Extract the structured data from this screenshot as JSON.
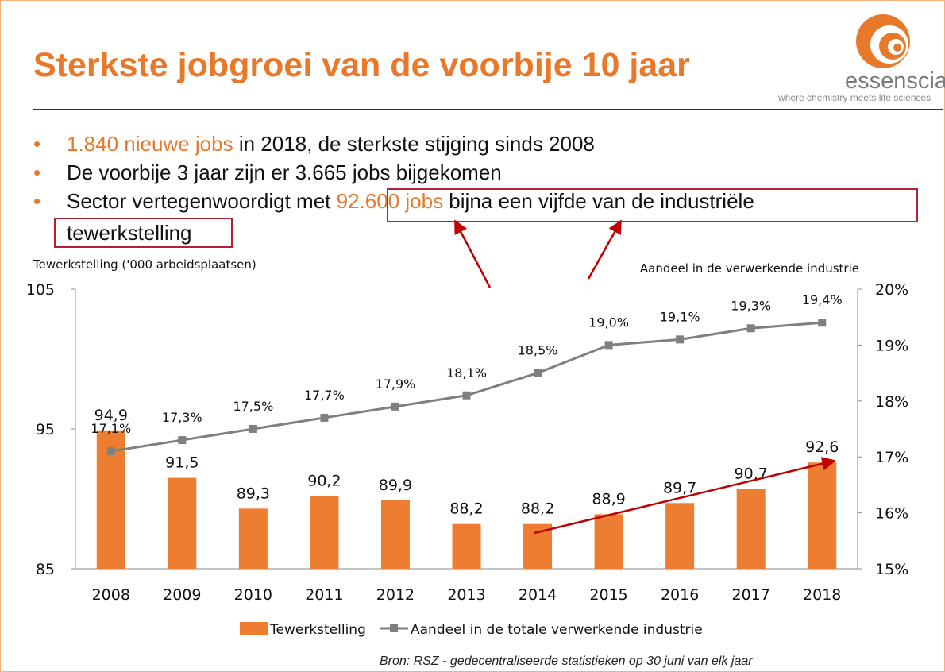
{
  "page": {
    "title": "Sterkste jobgroei van de voorbije 10 jaar",
    "logo_name": "essenscia",
    "tagline": "where chemistry meets life sciences",
    "source": "Bron: RSZ - gedecentraliseerde statistieken op 30 juni van elk jaar",
    "colors": {
      "accent": "#e8792b",
      "bar": "#ed7d31",
      "line": "#7f7f7f",
      "highlight_box": "#b22234"
    }
  },
  "bullets": [
    {
      "highlight": "1.840 nieuwe jobs",
      "text": " in 2018, de sterkste stijging sinds 2008"
    },
    {
      "text": "De voorbije 3 jaar zijn er 3.665 jobs bijgekomen"
    },
    {
      "pre": "Sector vertegenwoordigt met ",
      "highlight": "92.600 jobs",
      "post": " bijna een vijfde van de industriële",
      "cont": "tewerkstelling"
    }
  ],
  "chart_data": {
    "type": "bar",
    "categories": [
      "2008",
      "2009",
      "2010",
      "2011",
      "2012",
      "2013",
      "2014",
      "2015",
      "2016",
      "2017",
      "2018"
    ],
    "series": [
      {
        "name": "Tewerkstelling",
        "type": "bar",
        "axis": "left",
        "values": [
          94.9,
          91.5,
          89.3,
          90.2,
          89.9,
          88.2,
          88.2,
          88.9,
          89.7,
          90.7,
          92.6
        ],
        "labels": [
          "94,9",
          "91,5",
          "89,3",
          "90,2",
          "89,9",
          "88,2",
          "88,2",
          "88,9",
          "89,7",
          "90,7",
          "92,6"
        ]
      },
      {
        "name": "Aandeel in de totale verwerkende industrie",
        "type": "line",
        "axis": "right",
        "values": [
          17.1,
          17.3,
          17.5,
          17.7,
          17.9,
          18.1,
          18.5,
          19.0,
          19.1,
          19.3,
          19.4
        ],
        "labels": [
          "17,1%",
          "17,3%",
          "17,5%",
          "17,7%",
          "17,9%",
          "18,1%",
          "18,5%",
          "19,0%",
          "19,1%",
          "19,3%",
          "19,4%"
        ]
      }
    ],
    "ylabel": "Tewerkstelling ('000 arbeidsplaatsen)",
    "y2label": "Aandeel in de verwerkende industrie",
    "ylim": [
      85,
      105
    ],
    "yticks": [
      "85",
      "95",
      "105"
    ],
    "y2lim": [
      15,
      20
    ],
    "y2ticks": [
      "15%",
      "16%",
      "17%",
      "18%",
      "19%",
      "20%"
    ],
    "legend_position": "bottom",
    "grid": false
  }
}
